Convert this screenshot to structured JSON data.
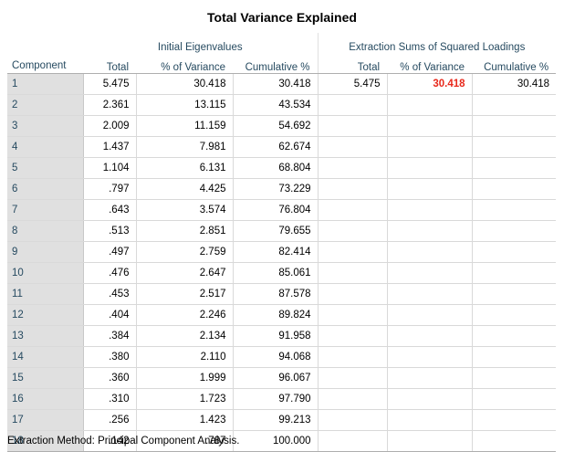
{
  "title": "Total Variance Explained",
  "headers": {
    "component": "Component",
    "group_initial": "Initial Eigenvalues",
    "group_extraction": "Extraction Sums of Squared Loadings",
    "cols": [
      "Total",
      "% of Variance",
      "Cumulative %",
      "Total",
      "% of Variance",
      "Cumulative %"
    ]
  },
  "rows": [
    {
      "component": "1",
      "total": "5.475",
      "pct": "30.418",
      "cum": "30.418",
      "ext_total": "5.475",
      "ext_pct": "30.418",
      "ext_cum": "30.418"
    },
    {
      "component": "2",
      "total": "2.361",
      "pct": "13.115",
      "cum": "43.534",
      "ext_total": "",
      "ext_pct": "",
      "ext_cum": ""
    },
    {
      "component": "3",
      "total": "2.009",
      "pct": "11.159",
      "cum": "54.692",
      "ext_total": "",
      "ext_pct": "",
      "ext_cum": ""
    },
    {
      "component": "4",
      "total": "1.437",
      "pct": "7.981",
      "cum": "62.674",
      "ext_total": "",
      "ext_pct": "",
      "ext_cum": ""
    },
    {
      "component": "5",
      "total": "1.104",
      "pct": "6.131",
      "cum": "68.804",
      "ext_total": "",
      "ext_pct": "",
      "ext_cum": ""
    },
    {
      "component": "6",
      "total": ".797",
      "pct": "4.425",
      "cum": "73.229",
      "ext_total": "",
      "ext_pct": "",
      "ext_cum": ""
    },
    {
      "component": "7",
      "total": ".643",
      "pct": "3.574",
      "cum": "76.804",
      "ext_total": "",
      "ext_pct": "",
      "ext_cum": ""
    },
    {
      "component": "8",
      "total": ".513",
      "pct": "2.851",
      "cum": "79.655",
      "ext_total": "",
      "ext_pct": "",
      "ext_cum": ""
    },
    {
      "component": "9",
      "total": ".497",
      "pct": "2.759",
      "cum": "82.414",
      "ext_total": "",
      "ext_pct": "",
      "ext_cum": ""
    },
    {
      "component": "10",
      "total": ".476",
      "pct": "2.647",
      "cum": "85.061",
      "ext_total": "",
      "ext_pct": "",
      "ext_cum": ""
    },
    {
      "component": "11",
      "total": ".453",
      "pct": "2.517",
      "cum": "87.578",
      "ext_total": "",
      "ext_pct": "",
      "ext_cum": ""
    },
    {
      "component": "12",
      "total": ".404",
      "pct": "2.246",
      "cum": "89.824",
      "ext_total": "",
      "ext_pct": "",
      "ext_cum": ""
    },
    {
      "component": "13",
      "total": ".384",
      "pct": "2.134",
      "cum": "91.958",
      "ext_total": "",
      "ext_pct": "",
      "ext_cum": ""
    },
    {
      "component": "14",
      "total": ".380",
      "pct": "2.110",
      "cum": "94.068",
      "ext_total": "",
      "ext_pct": "",
      "ext_cum": ""
    },
    {
      "component": "15",
      "total": ".360",
      "pct": "1.999",
      "cum": "96.067",
      "ext_total": "",
      "ext_pct": "",
      "ext_cum": ""
    },
    {
      "component": "16",
      "total": ".310",
      "pct": "1.723",
      "cum": "97.790",
      "ext_total": "",
      "ext_pct": "",
      "ext_cum": ""
    },
    {
      "component": "17",
      "total": ".256",
      "pct": "1.423",
      "cum": "99.213",
      "ext_total": "",
      "ext_pct": "",
      "ext_cum": ""
    },
    {
      "component": "18",
      "total": ".142",
      "pct": ".787",
      "cum": "100.000",
      "ext_total": "",
      "ext_pct": "",
      "ext_cum": ""
    }
  ],
  "highlight": {
    "row": 0,
    "field": "ext_pct",
    "color": "#e8291c"
  },
  "footer": "Extraction Method: Principal Component Analysis."
}
